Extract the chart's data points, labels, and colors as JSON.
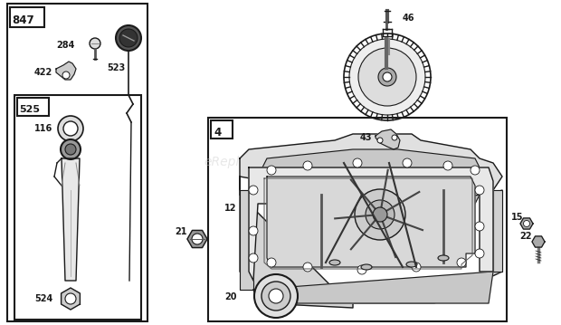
{
  "bg_color": "#ffffff",
  "watermark": "eReplacementParts.com",
  "line_color": "#1a1a1a",
  "label_fontsize": 7.0,
  "label_fontweight": "bold",
  "figsize": [
    6.2,
    3.59
  ],
  "dpi": 100
}
